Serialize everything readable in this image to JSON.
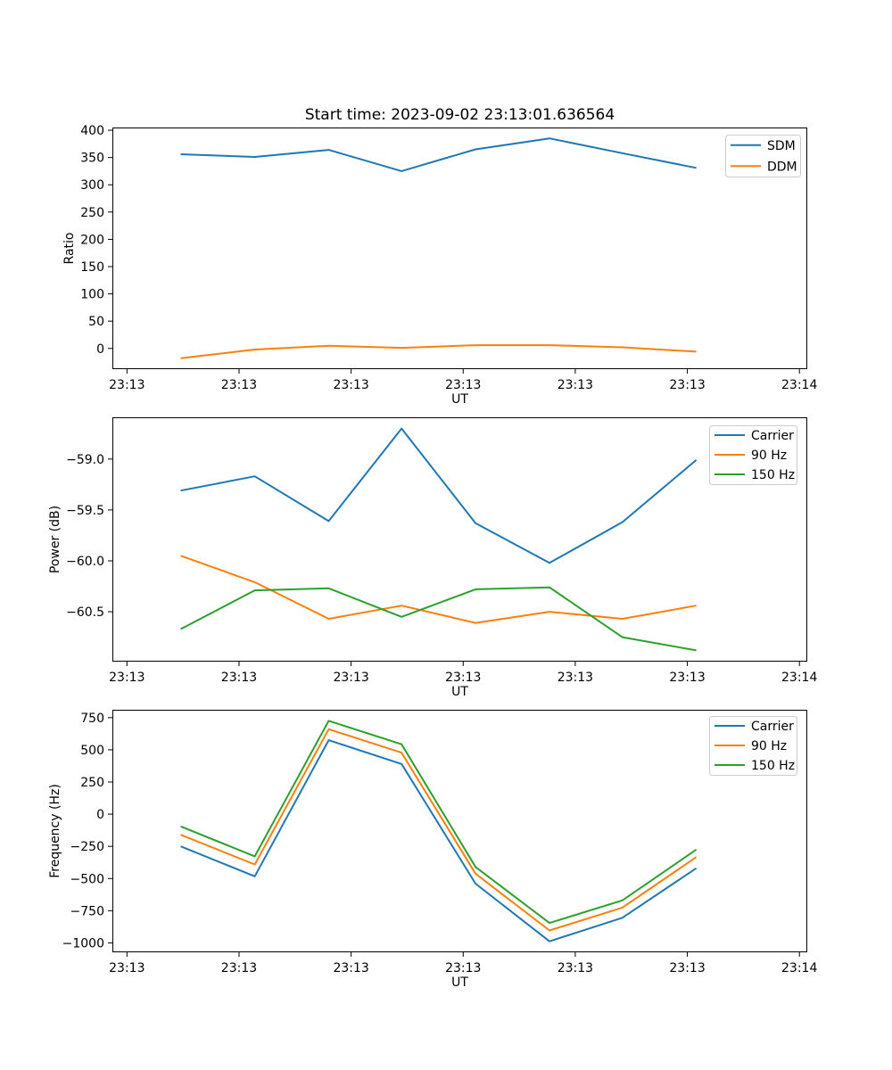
{
  "figure": {
    "title": "Start time: 2023-09-02 23:13:01.636564",
    "background": "#ffffff"
  },
  "palette": {
    "blue": "#1f77b4",
    "orange": "#ff7f0e",
    "green": "#2ca02c",
    "axis": "#000000",
    "legend_border": "#cccccc",
    "legend_background": "#ffffff"
  },
  "chart_data": [
    {
      "type": "line",
      "name": "ratio",
      "title": "Start time: 2023-09-02 23:13:01.636564",
      "xlabel": "UT",
      "ylabel": "Ratio",
      "x_axis": {
        "unit": "seconds after 23:13:00 UT",
        "xlim": [
          -1.3,
          60.7
        ],
        "ticks": [
          0,
          10,
          20,
          30,
          40,
          50,
          60
        ],
        "tick_labels": [
          "23:13",
          "23:13",
          "23:13",
          "23:13",
          "23:13",
          "23:13",
          "23:14"
        ]
      },
      "y_axis": {
        "ylim": [
          -38,
          405
        ],
        "ticks": [
          0,
          50,
          100,
          150,
          200,
          250,
          300,
          350,
          400
        ],
        "tick_labels": [
          "0",
          "50",
          "100",
          "150",
          "200",
          "250",
          "300",
          "350",
          "400"
        ]
      },
      "x": [
        4.8,
        11.4,
        18.0,
        24.5,
        31.1,
        37.7,
        44.2,
        50.8
      ],
      "series": [
        {
          "name": "SDM",
          "color": "#1f77b4",
          "values": [
            356,
            351,
            364,
            325,
            365,
            385,
            358,
            331
          ]
        },
        {
          "name": "DDM",
          "color": "#ff7f0e",
          "values": [
            -18,
            -2,
            5,
            1,
            6,
            6,
            2,
            -6
          ]
        }
      ],
      "legend": {
        "position": "upper right",
        "entries": [
          "SDM",
          "DDM"
        ]
      },
      "grid": false
    },
    {
      "type": "line",
      "name": "power",
      "title": "",
      "xlabel": "UT",
      "ylabel": "Power (dB)",
      "x_axis": {
        "unit": "seconds after 23:13:00 UT",
        "xlim": [
          -1.3,
          60.7
        ],
        "ticks": [
          0,
          10,
          20,
          30,
          40,
          50,
          60
        ],
        "tick_labels": [
          "23:13",
          "23:13",
          "23:13",
          "23:13",
          "23:13",
          "23:13",
          "23:14"
        ]
      },
      "y_axis": {
        "ylim": [
          -60.99,
          -58.59
        ],
        "ticks": [
          -60.5,
          -60.0,
          -59.5,
          -59.0
        ],
        "tick_labels": [
          "−60.5",
          "−60.0",
          "−59.5",
          "−59.0"
        ]
      },
      "x": [
        4.8,
        11.4,
        18.0,
        24.5,
        31.1,
        37.7,
        44.2,
        50.8
      ],
      "series": [
        {
          "name": "Carrier",
          "color": "#1f77b4",
          "values": [
            -59.31,
            -59.17,
            -59.61,
            -58.7,
            -59.63,
            -60.02,
            -59.62,
            -59.01
          ]
        },
        {
          "name": "90 Hz",
          "color": "#ff7f0e",
          "values": [
            -59.95,
            -60.21,
            -60.57,
            -60.44,
            -60.61,
            -60.5,
            -60.57,
            -60.44
          ]
        },
        {
          "name": "150 Hz",
          "color": "#2ca02c",
          "values": [
            -60.67,
            -60.29,
            -60.27,
            -60.55,
            -60.28,
            -60.26,
            -60.75,
            -60.88
          ]
        }
      ],
      "legend": {
        "position": "upper right",
        "entries": [
          "Carrier",
          "90 Hz",
          "150 Hz"
        ]
      },
      "grid": false
    },
    {
      "type": "line",
      "name": "frequency",
      "title": "",
      "xlabel": "UT",
      "ylabel": "Frequency (Hz)",
      "x_axis": {
        "unit": "seconds after 23:13:00 UT",
        "xlim": [
          -1.3,
          60.7
        ],
        "ticks": [
          0,
          10,
          20,
          30,
          40,
          50,
          60
        ],
        "tick_labels": [
          "23:13",
          "23:13",
          "23:13",
          "23:13",
          "23:13",
          "23:13",
          "23:14"
        ]
      },
      "y_axis": {
        "ylim": [
          -1073,
          811
        ],
        "ticks": [
          -1000,
          -750,
          -500,
          -250,
          0,
          250,
          500,
          750
        ],
        "tick_labels": [
          "−1000",
          "−750",
          "−500",
          "−250",
          "0",
          "250",
          "500",
          "750"
        ]
      },
      "x": [
        4.8,
        11.4,
        18.0,
        24.5,
        31.1,
        37.7,
        44.2,
        50.8
      ],
      "series": [
        {
          "name": "Carrier",
          "color": "#1f77b4",
          "values": [
            -250,
            -483,
            575,
            390,
            -540,
            -988,
            -805,
            -420
          ]
        },
        {
          "name": "90 Hz",
          "color": "#ff7f0e",
          "values": [
            -160,
            -391,
            660,
            478,
            -462,
            -903,
            -726,
            -333
          ]
        },
        {
          "name": "150 Hz",
          "color": "#2ca02c",
          "values": [
            -95,
            -328,
            725,
            543,
            -410,
            -845,
            -670,
            -275
          ]
        }
      ],
      "legend": {
        "position": "upper right",
        "entries": [
          "Carrier",
          "90 Hz",
          "150 Hz"
        ]
      },
      "grid": false
    }
  ]
}
